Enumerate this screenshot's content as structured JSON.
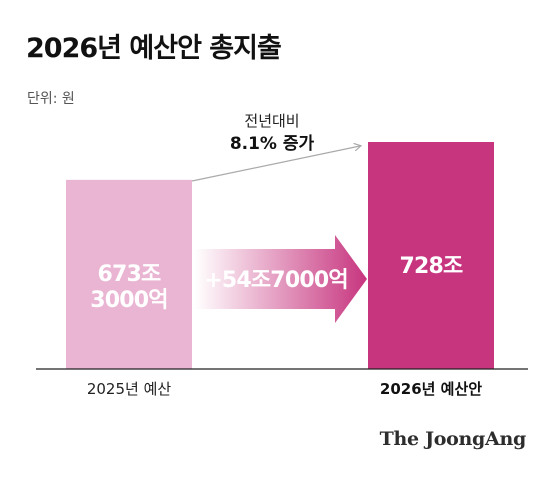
{
  "title": "2026년 예산안 총지출",
  "unit_label": "단위: 원",
  "brand": "The JoongAng",
  "colors": {
    "bar_2025": "#EAB5D2",
    "bar_2026": "#C7357F",
    "arrow_start": "#FFFFFF",
    "arrow_end": "#C7357F",
    "connector": "#AAAAAA"
  },
  "chart_data": {
    "type": "bar",
    "categories": [
      "2025년 예산",
      "2026년 예산안"
    ],
    "values": [
      673.3,
      728
    ],
    "value_labels": [
      "673조\n3000억",
      "728조"
    ],
    "value_unit": "조 원",
    "change_label": "+54조7000억",
    "annotation": {
      "line1": "전년대비",
      "line2": "8.1% 증가"
    }
  }
}
